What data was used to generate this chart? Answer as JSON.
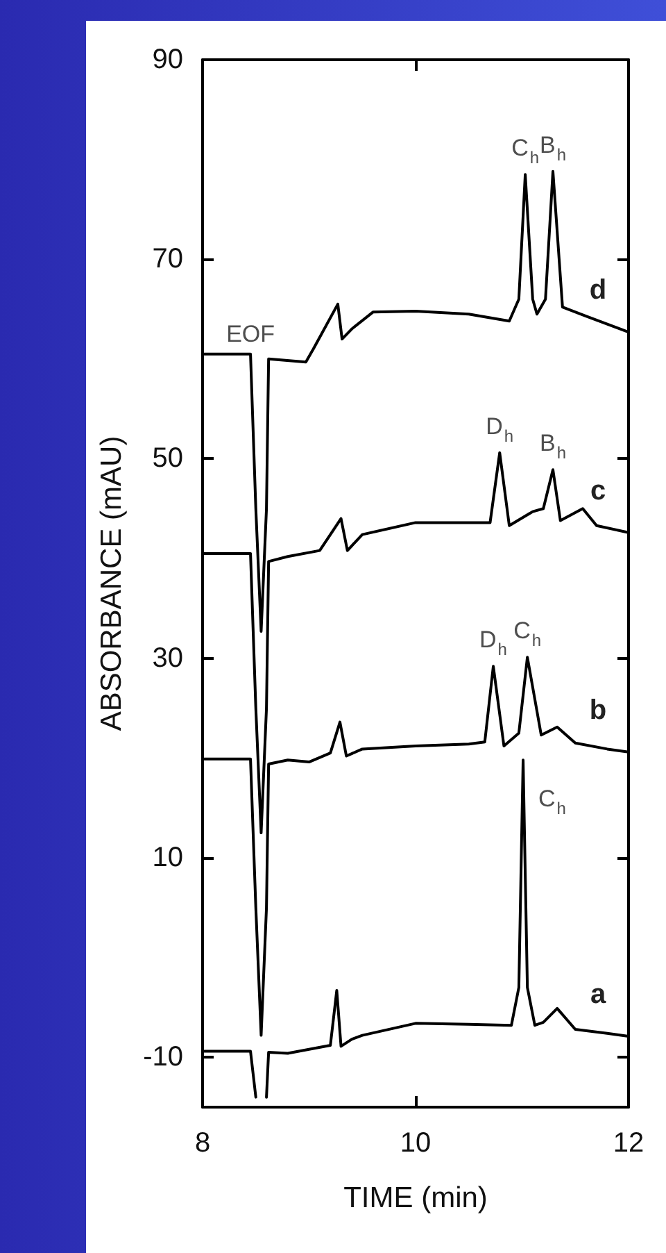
{
  "chart_data": {
    "type": "line",
    "xlabel": "TIME (min)",
    "ylabel": "ABSORBANCE (mAU)",
    "xlim": [
      8,
      12
    ],
    "xticks": [
      8,
      10,
      12
    ],
    "ylim": [
      -15,
      90
    ],
    "yticks": [
      -10,
      10,
      30,
      50,
      70,
      90
    ],
    "grid": false,
    "legend": "right",
    "marker": "none",
    "line_style": "solid",
    "series": [
      {
        "name": "a",
        "color": "#000000",
        "x": [
          8,
          8.45,
          8.5,
          8.53,
          8.56,
          8.6,
          8.62,
          8.8,
          9.0,
          9.2,
          9.26,
          9.3,
          9.4,
          9.5,
          10,
          10.5,
          10.9,
          10.97,
          11.01,
          11.05,
          11.12,
          11.2,
          11.33,
          11.5,
          11.8,
          12
        ],
        "values": [
          -9.4,
          -9.4,
          -14,
          null,
          null,
          -14,
          -9.5,
          -9.6,
          -9.2,
          -8.8,
          -3.3,
          -8.9,
          -8.2,
          -7.8,
          -6.6,
          -6.7,
          -6.8,
          -3,
          19.8,
          -3,
          -6.8,
          -6.5,
          -5.1,
          -7.2,
          -7.6,
          -7.9
        ]
      },
      {
        "name": "b",
        "color": "#000000",
        "x": [
          8,
          8.45,
          8.5,
          8.55,
          8.6,
          8.62,
          8.8,
          9.0,
          9.2,
          9.29,
          9.35,
          9.5,
          10,
          10.5,
          10.65,
          10.73,
          10.83,
          10.97,
          11.05,
          11.18,
          11.33,
          11.5,
          11.8,
          12
        ],
        "values": [
          19.9,
          19.9,
          5,
          -7.8,
          5,
          19.4,
          19.8,
          19.6,
          20.5,
          23.6,
          20.2,
          20.9,
          21.2,
          21.4,
          21.6,
          29.2,
          21.2,
          22.5,
          30.1,
          22.3,
          23.1,
          21.5,
          20.9,
          20.6
        ]
      },
      {
        "name": "c",
        "color": "#000000",
        "x": [
          8,
          8.45,
          8.5,
          8.55,
          8.6,
          8.62,
          8.8,
          9.1,
          9.3,
          9.36,
          9.5,
          10,
          10.7,
          10.79,
          10.88,
          11.1,
          11.2,
          11.29,
          11.36,
          11.57,
          11.7,
          12
        ],
        "values": [
          40.5,
          40.5,
          25,
          12.5,
          25,
          39.7,
          40.2,
          40.8,
          44,
          40.8,
          42.4,
          43.6,
          43.6,
          50.6,
          43.3,
          44.7,
          45,
          48.9,
          43.8,
          45,
          43.3,
          42.6
        ]
      },
      {
        "name": "d",
        "color": "#000000",
        "x": [
          8,
          8.45,
          8.5,
          8.55,
          8.6,
          8.62,
          8.97,
          9.04,
          9.27,
          9.31,
          9.4,
          9.6,
          10,
          10.5,
          10.88,
          10.97,
          11.03,
          11.1,
          11.14,
          11.22,
          11.29,
          11.38,
          11.6,
          11.8,
          12
        ],
        "values": [
          60.5,
          60.5,
          45,
          32.7,
          45,
          60,
          59.7,
          61,
          65.5,
          62,
          63,
          64.7,
          64.8,
          64.5,
          63.8,
          66,
          78.5,
          66,
          64.5,
          66,
          78.8,
          65.2,
          64.3,
          63.5,
          62.7
        ]
      }
    ],
    "annotations": [
      {
        "text": "EOF",
        "x": 8.45,
        "y": 60.5
      },
      {
        "text": "C$_{h}$",
        "x": 11.03,
        "y": 78.5
      },
      {
        "text": "B$_{h}$",
        "x": 11.29,
        "y": 78.8
      },
      {
        "text": "D$_{h}$",
        "x": 10.79,
        "y": 50.6
      },
      {
        "text": "B$_{h}$",
        "x": 11.29,
        "y": 48.9
      },
      {
        "text": "D$_{h}$",
        "x": 10.73,
        "y": 29.2
      },
      {
        "text": "C$_{h}$",
        "x": 11.05,
        "y": 30.1
      },
      {
        "text": "C$_{h}$",
        "x": 11.01,
        "y": 19.8
      }
    ]
  }
}
